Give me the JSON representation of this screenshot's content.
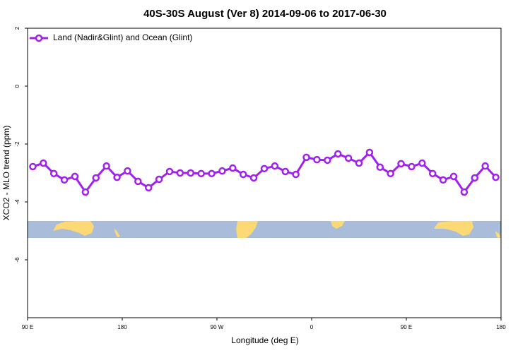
{
  "chart_data": {
    "type": "line",
    "title": "40S-30S August (Ver 8)   2014-09-06 to 2017-06-30",
    "x_label": "Longitude (deg E)",
    "y_label": "XCO2 - MLO trend (ppm)",
    "x": [
      95,
      105,
      115,
      125,
      135,
      145,
      155,
      165,
      175,
      185,
      195,
      205,
      215,
      225,
      235,
      245,
      255,
      265,
      275,
      285,
      295,
      305,
      315,
      325,
      335,
      345,
      355,
      365,
      375,
      385,
      395,
      405,
      415,
      425,
      435,
      445,
      455,
      465,
      475,
      485,
      495,
      505,
      515,
      525,
      535
    ],
    "series": [
      {
        "name": "Land (Nadir&Glint) and Ocean (Glint)",
        "color": "#a020f0",
        "values": [
          -2.78,
          -2.66,
          -3.02,
          -3.24,
          -3.12,
          -3.66,
          -3.17,
          -2.76,
          -3.15,
          -2.93,
          -3.29,
          -3.51,
          -3.22,
          -2.95,
          -3.0,
          -3.0,
          -3.02,
          -3.02,
          -2.93,
          -2.83,
          -3.05,
          -3.17,
          -2.85,
          -2.76,
          -2.95,
          -3.05,
          -2.46,
          -2.54,
          -2.56,
          -2.34,
          -2.49,
          -2.66,
          -2.29,
          -2.8,
          -3.02,
          -2.68,
          -2.78,
          -2.66,
          -3.02,
          -3.24,
          -3.12,
          -3.66,
          -3.17,
          -2.76,
          -3.15
        ]
      }
    ],
    "xlim": [
      90,
      540
    ],
    "xticks": [
      {
        "value": 90,
        "label": "90 E"
      },
      {
        "value": 180,
        "label": "180"
      },
      {
        "value": 270,
        "label": "90 W"
      },
      {
        "value": 360,
        "label": "0"
      },
      {
        "value": 450,
        "label": "90 E"
      },
      {
        "value": 540,
        "label": "180"
      }
    ],
    "ylim": [
      -8,
      2
    ],
    "yticks": [
      2,
      0,
      -2,
      -4,
      -6
    ],
    "legend": "top-left"
  }
}
